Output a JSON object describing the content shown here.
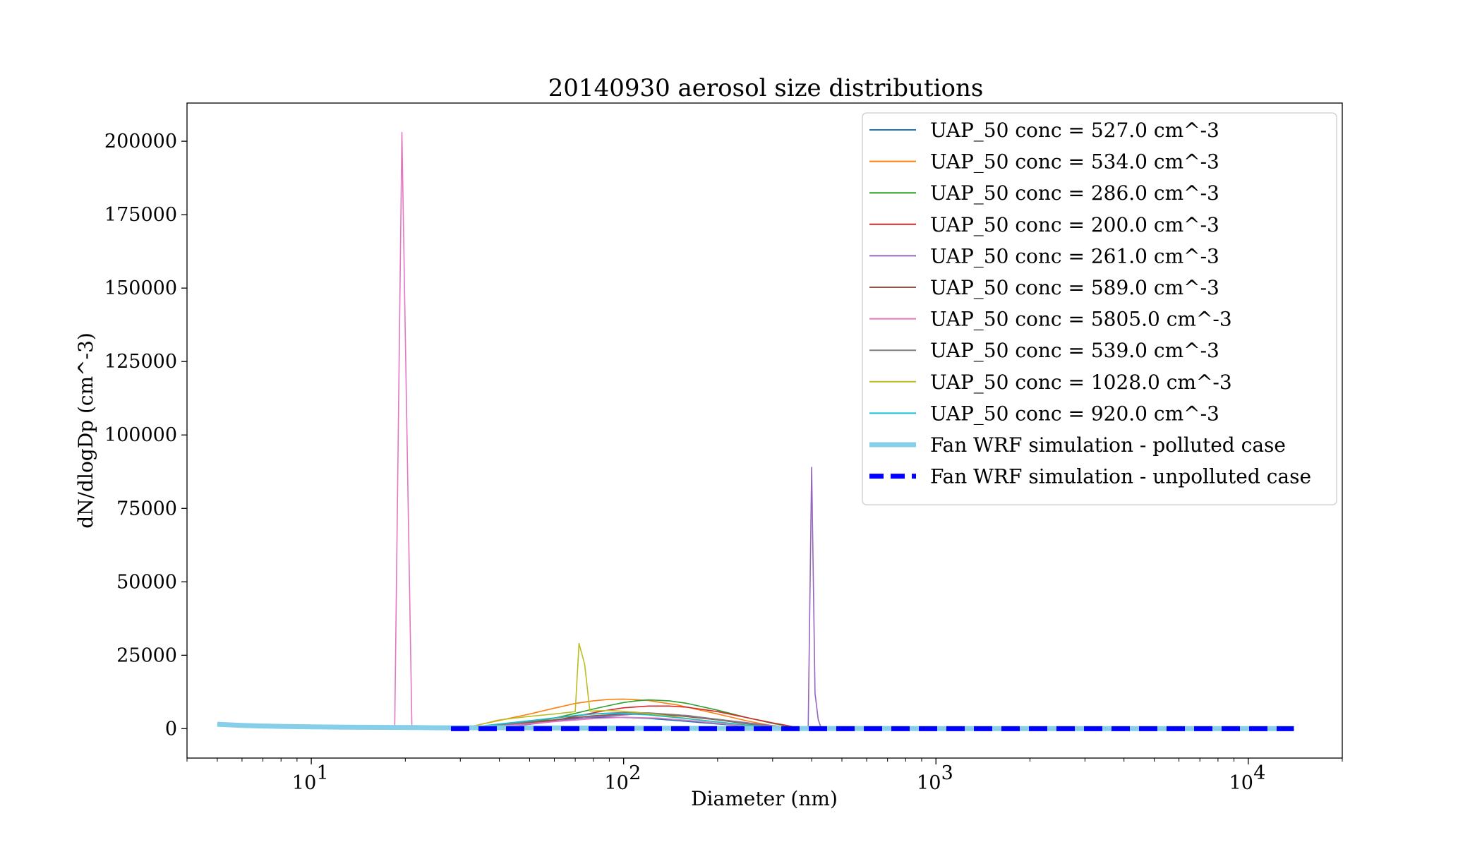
{
  "chart_data": {
    "type": "line",
    "title": "20140930 aerosol size distributions",
    "xlabel": "Diameter (nm)",
    "ylabel": "dN/dlogDp (cm^-3)",
    "xscale": "log",
    "xlim": [
      4,
      20000
    ],
    "ylim": [
      -10000,
      213000
    ],
    "yticks": [
      0,
      25000,
      50000,
      75000,
      100000,
      125000,
      150000,
      175000,
      200000
    ],
    "xticks": [
      {
        "value": 10,
        "base": "10",
        "exp": "1"
      },
      {
        "value": 100,
        "base": "10",
        "exp": "2"
      },
      {
        "value": 1000,
        "base": "10",
        "exp": "3"
      },
      {
        "value": 10000,
        "base": "10",
        "exp": "4"
      }
    ],
    "grid": false,
    "legend_position": "top-right",
    "series": [
      {
        "name": "UAP_50 conc = 527.0 cm^-3",
        "color": "#1f77b4",
        "width": 1.6,
        "dash": "",
        "points": [
          [
            30,
            0
          ],
          [
            35,
            700
          ],
          [
            40,
            1300
          ],
          [
            50,
            2200
          ],
          [
            60,
            3000
          ],
          [
            70,
            3500
          ],
          [
            80,
            3800
          ],
          [
            90,
            3900
          ],
          [
            100,
            3850
          ],
          [
            120,
            3500
          ],
          [
            150,
            2700
          ],
          [
            200,
            1600
          ],
          [
            250,
            800
          ],
          [
            300,
            300
          ],
          [
            350,
            0
          ]
        ]
      },
      {
        "name": "UAP_50 conc = 534.0 cm^-3",
        "color": "#ff7f0e",
        "width": 1.6,
        "dash": "",
        "points": [
          [
            30,
            0
          ],
          [
            35,
            1500
          ],
          [
            40,
            2800
          ],
          [
            50,
            5000
          ],
          [
            60,
            7000
          ],
          [
            70,
            8600
          ],
          [
            80,
            9500
          ],
          [
            90,
            10000
          ],
          [
            100,
            10100
          ],
          [
            120,
            9600
          ],
          [
            150,
            8000
          ],
          [
            200,
            5000
          ],
          [
            250,
            2600
          ],
          [
            300,
            1000
          ],
          [
            350,
            200
          ],
          [
            380,
            0
          ]
        ]
      },
      {
        "name": "UAP_50 conc = 286.0 cm^-3",
        "color": "#2ca02c",
        "width": 1.6,
        "dash": "",
        "points": [
          [
            30,
            0
          ],
          [
            40,
            800
          ],
          [
            50,
            2000
          ],
          [
            60,
            3600
          ],
          [
            70,
            5200
          ],
          [
            80,
            6700
          ],
          [
            90,
            7900
          ],
          [
            100,
            8900
          ],
          [
            110,
            9500
          ],
          [
            120,
            9800
          ],
          [
            140,
            9500
          ],
          [
            160,
            8600
          ],
          [
            200,
            6300
          ],
          [
            250,
            3700
          ],
          [
            300,
            1800
          ],
          [
            350,
            500
          ],
          [
            380,
            0
          ]
        ]
      },
      {
        "name": "UAP_50 conc = 200.0 cm^-3",
        "color": "#d62728",
        "width": 1.6,
        "dash": "",
        "points": [
          [
            30,
            0
          ],
          [
            40,
            500
          ],
          [
            50,
            1500
          ],
          [
            60,
            2800
          ],
          [
            70,
            4200
          ],
          [
            80,
            5400
          ],
          [
            90,
            6400
          ],
          [
            100,
            7100
          ],
          [
            120,
            7700
          ],
          [
            140,
            7700
          ],
          [
            160,
            7300
          ],
          [
            200,
            5800
          ],
          [
            250,
            3700
          ],
          [
            300,
            2000
          ],
          [
            350,
            700
          ],
          [
            380,
            0
          ]
        ]
      },
      {
        "name": "UAP_50 conc = 261.0 cm^-3",
        "color": "#9467bd",
        "width": 1.6,
        "dash": "",
        "points": [
          [
            30,
            0
          ],
          [
            50,
            1500
          ],
          [
            80,
            4000
          ],
          [
            120,
            5200
          ],
          [
            160,
            4500
          ],
          [
            200,
            3200
          ],
          [
            250,
            2000
          ],
          [
            300,
            1000
          ],
          [
            350,
            300
          ],
          [
            380,
            0
          ],
          [
            390,
            0
          ],
          [
            400,
            89000
          ],
          [
            410,
            12000
          ],
          [
            420,
            3000
          ],
          [
            430,
            0
          ]
        ]
      },
      {
        "name": "UAP_50 conc = 589.0 cm^-3",
        "color": "#8c564b",
        "width": 1.6,
        "dash": "",
        "points": [
          [
            30,
            0
          ],
          [
            40,
            900
          ],
          [
            50,
            2000
          ],
          [
            60,
            3000
          ],
          [
            70,
            3800
          ],
          [
            80,
            4400
          ],
          [
            100,
            5000
          ],
          [
            120,
            5000
          ],
          [
            150,
            4400
          ],
          [
            200,
            3000
          ],
          [
            250,
            1600
          ],
          [
            300,
            700
          ],
          [
            350,
            100
          ],
          [
            380,
            0
          ]
        ]
      },
      {
        "name": "UAP_50 conc = 5805.0 cm^-3",
        "color": "#e377c2",
        "width": 1.6,
        "dash": "",
        "points": [
          [
            18.5,
            0
          ],
          [
            19.5,
            203000
          ],
          [
            21,
            0
          ],
          [
            30,
            0
          ],
          [
            40,
            900
          ],
          [
            60,
            2400
          ],
          [
            80,
            3400
          ],
          [
            100,
            3900
          ],
          [
            130,
            3600
          ],
          [
            170,
            2600
          ],
          [
            220,
            1400
          ],
          [
            280,
            500
          ],
          [
            330,
            0
          ]
        ]
      },
      {
        "name": "UAP_50 conc = 539.0 cm^-3",
        "color": "#7f7f7f",
        "width": 1.6,
        "dash": "",
        "points": [
          [
            30,
            0
          ],
          [
            40,
            1200
          ],
          [
            50,
            2500
          ],
          [
            60,
            3600
          ],
          [
            70,
            4400
          ],
          [
            80,
            5000
          ],
          [
            90,
            5300
          ],
          [
            100,
            5500
          ],
          [
            120,
            5400
          ],
          [
            150,
            4700
          ],
          [
            200,
            3200
          ],
          [
            250,
            1800
          ],
          [
            300,
            800
          ],
          [
            350,
            100
          ],
          [
            380,
            0
          ]
        ]
      },
      {
        "name": "UAP_50 conc = 1028.0 cm^-3",
        "color": "#bcbd22",
        "width": 1.6,
        "dash": "",
        "points": [
          [
            30,
            0
          ],
          [
            35,
            1500
          ],
          [
            40,
            3000
          ],
          [
            50,
            4200
          ],
          [
            60,
            5000
          ],
          [
            70,
            5800
          ],
          [
            72,
            29000
          ],
          [
            75,
            22000
          ],
          [
            78,
            6000
          ],
          [
            90,
            6200
          ],
          [
            110,
            5600
          ],
          [
            140,
            4300
          ],
          [
            180,
            2800
          ],
          [
            230,
            1500
          ],
          [
            280,
            600
          ],
          [
            330,
            0
          ]
        ]
      },
      {
        "name": "UAP_50 conc = 920.0 cm^-3",
        "color": "#17becf",
        "width": 1.6,
        "dash": "",
        "points": [
          [
            30,
            0
          ],
          [
            35,
            900
          ],
          [
            40,
            1600
          ],
          [
            50,
            2700
          ],
          [
            60,
            3700
          ],
          [
            70,
            4500
          ],
          [
            80,
            5000
          ],
          [
            90,
            5200
          ],
          [
            100,
            5100
          ],
          [
            120,
            4700
          ],
          [
            150,
            3700
          ],
          [
            200,
            2300
          ],
          [
            250,
            1200
          ],
          [
            300,
            500
          ],
          [
            350,
            0
          ]
        ]
      },
      {
        "name": "Fan WRF simulation - polluted case",
        "color": "#87ceeb",
        "width": 7,
        "dash": "",
        "points": [
          [
            5,
            1500
          ],
          [
            6,
            1100
          ],
          [
            7,
            900
          ],
          [
            8,
            780
          ],
          [
            10,
            650
          ],
          [
            12,
            560
          ],
          [
            15,
            480
          ],
          [
            18,
            420
          ],
          [
            22,
            370
          ],
          [
            25,
            300
          ],
          [
            28,
            320
          ],
          [
            30,
            330
          ],
          [
            40,
            300
          ],
          [
            60,
            250
          ],
          [
            80,
            200
          ],
          [
            100,
            170
          ],
          [
            200,
            100
          ],
          [
            400,
            60
          ],
          [
            1000,
            40
          ],
          [
            5000,
            30
          ],
          [
            14000,
            30
          ]
        ]
      },
      {
        "name": "Fan WRF simulation - unpolluted case",
        "color": "#0000ff",
        "width": 7,
        "dash": "26,13",
        "points": [
          [
            28,
            0
          ],
          [
            100,
            0
          ],
          [
            1000,
            0
          ],
          [
            10000,
            0
          ],
          [
            14000,
            0
          ]
        ]
      }
    ]
  }
}
